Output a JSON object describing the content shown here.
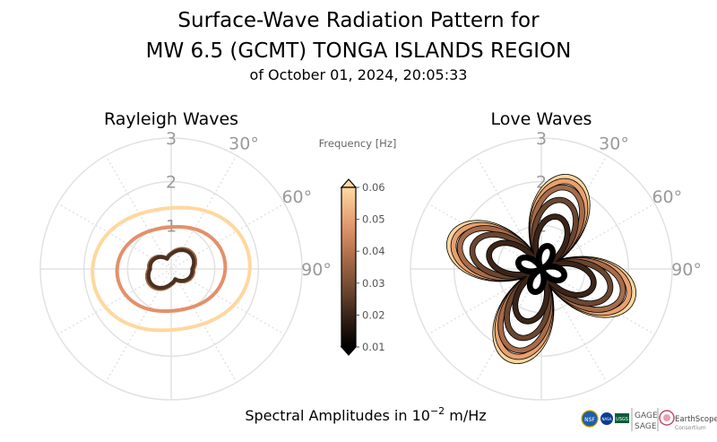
{
  "header": {
    "title_line1": "Surface-Wave Radiation Pattern for",
    "title_line2": "MW 6.5 (GCMT) TONGA ISLANDS REGION",
    "subtitle": "of October 01, 2024, 20:05:33"
  },
  "footer": {
    "xlabel_prefix": "Spectral Amplitudes in 10",
    "xlabel_exponent": "−2",
    "xlabel_suffix": " m/Hz",
    "logos": [
      {
        "name": "nsf-logo",
        "text": "NSF"
      },
      {
        "name": "nasa-logo",
        "text": "NASA"
      },
      {
        "name": "usgs-logo",
        "text": "USGS"
      },
      {
        "name": "gage-logo",
        "text": "GAGE"
      },
      {
        "name": "sage-logo",
        "text": "SAGE"
      },
      {
        "name": "earthscope-logo",
        "text": "EarthScope"
      },
      {
        "name": "consortium-logo",
        "text": "Consortium"
      }
    ]
  },
  "colorbar": {
    "label": "Frequency [Hz]",
    "ticks": [
      "0.06",
      "0.05",
      "0.04",
      "0.03",
      "0.02",
      "0.01"
    ],
    "range": [
      0.01,
      0.06
    ],
    "colors": [
      "#fed8a0",
      "#f4b07a",
      "#d98c5e",
      "#a86a48",
      "#724833",
      "#3a2418",
      "#000000"
    ]
  },
  "chart_data": [
    {
      "type": "polar-line",
      "title": "Rayleigh Waves",
      "rlim": [
        0,
        3
      ],
      "r_ticks": [
        "1",
        "2",
        "3"
      ],
      "theta_ticks": [
        "30°",
        "60°",
        "90°"
      ],
      "grid": true,
      "series": [
        {
          "frequency": 0.01,
          "color": "#111111",
          "shape": "rayleigh-small",
          "amplitude": 0.62
        },
        {
          "frequency": 0.02,
          "color": "#4a3022",
          "shape": "rayleigh-small",
          "amplitude": 0.58
        },
        {
          "frequency": 0.025,
          "color": "#8a5a3a",
          "shape": "rayleigh-small",
          "amplitude": 0.6
        },
        {
          "frequency": 0.03,
          "color": "#b07048",
          "shape": "rayleigh-small",
          "amplitude": 0.62
        },
        {
          "frequency": 0.045,
          "color": "#e3906a",
          "shape": "rayleigh-large",
          "amplitude": 1.1
        },
        {
          "frequency": 0.06,
          "color": "#ffd79e",
          "shape": "rayleigh-large",
          "amplitude": 1.6
        }
      ]
    },
    {
      "type": "polar-line",
      "title": "Love Waves",
      "rlim": [
        0,
        3
      ],
      "r_ticks": [
        "1",
        "2",
        "3"
      ],
      "theta_ticks": [
        "30°",
        "60°",
        "90°"
      ],
      "grid": true,
      "series": [
        {
          "frequency": 0.01,
          "color": "#000000",
          "shape": "love",
          "amplitude": 0.55
        },
        {
          "frequency": 0.02,
          "color": "#3a2418",
          "shape": "love",
          "amplitude": 1.25
        },
        {
          "frequency": 0.03,
          "color": "#6a4630",
          "shape": "love",
          "amplitude": 1.65
        },
        {
          "frequency": 0.04,
          "color": "#a66c4a",
          "shape": "love",
          "amplitude": 1.95
        },
        {
          "frequency": 0.05,
          "color": "#e8a070",
          "shape": "love",
          "amplitude": 2.1
        },
        {
          "frequency": 0.06,
          "color": "#ffd69c",
          "shape": "love",
          "amplitude": 2.2
        }
      ]
    }
  ]
}
